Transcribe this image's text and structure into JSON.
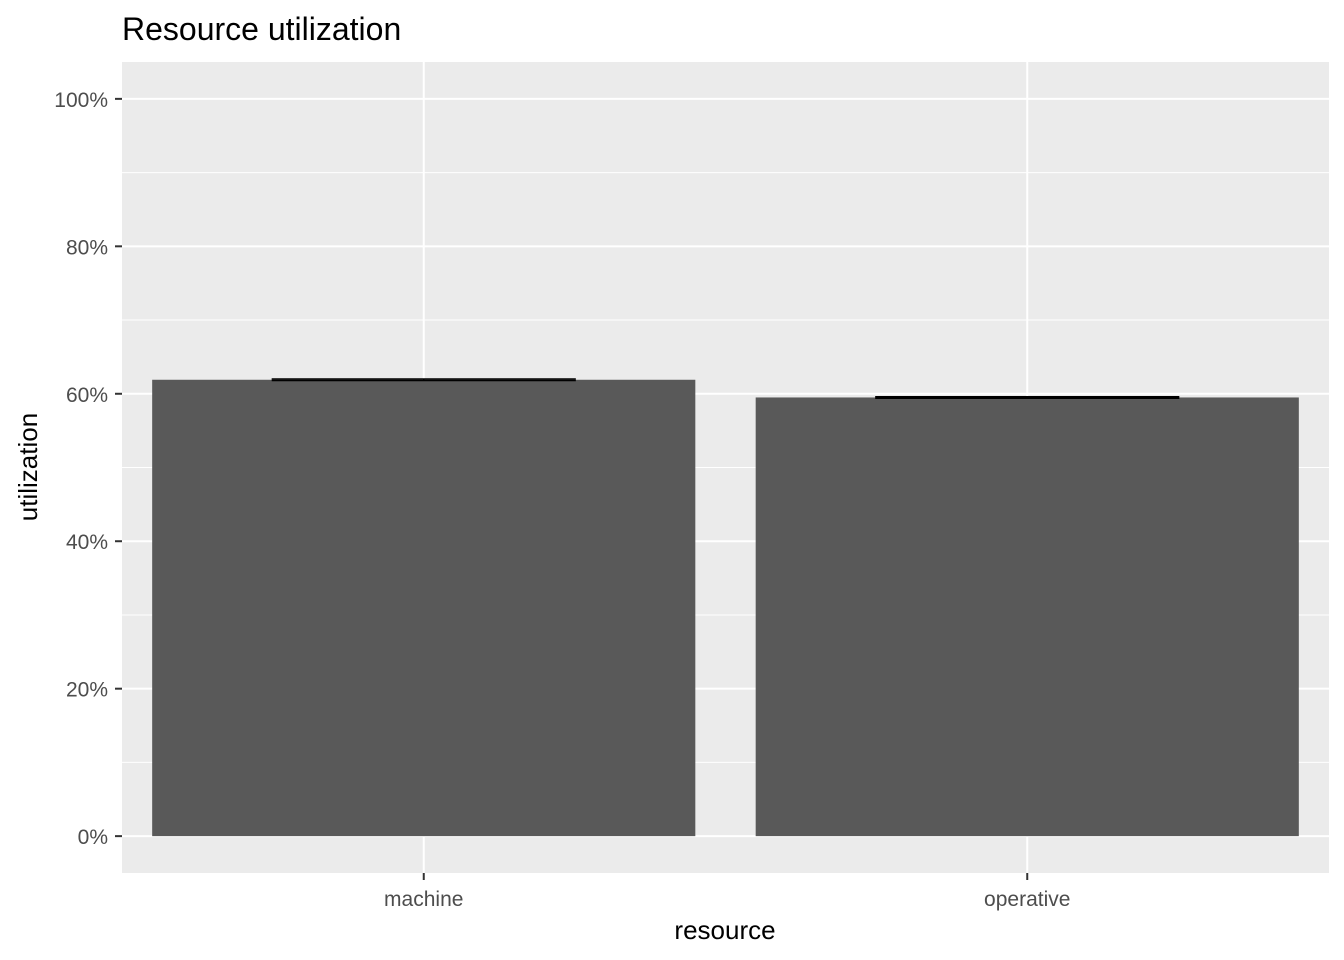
{
  "chart_data": {
    "type": "bar",
    "title": "Resource utilization",
    "xlabel": "resource",
    "ylabel": "utilization",
    "categories": [
      "machine",
      "operative"
    ],
    "values": [
      0.619,
      0.595
    ],
    "error_bars": [
      {
        "low": 0.618,
        "high": 0.62
      },
      {
        "low": 0.594,
        "high": 0.596
      }
    ],
    "ylim": [
      -0.05,
      1.05
    ],
    "y_ticks": [
      0,
      0.2,
      0.4,
      0.6,
      0.8,
      1.0
    ],
    "y_tick_labels": [
      "0%",
      "20%",
      "40%",
      "60%",
      "80%",
      "100%"
    ],
    "grid": true,
    "legend": "none",
    "colors": {
      "panel_background": "#ebebeb",
      "grid": "#ffffff",
      "bar_fill": "#595959",
      "error_bar": "#000000",
      "tick_mark": "#333333"
    }
  }
}
